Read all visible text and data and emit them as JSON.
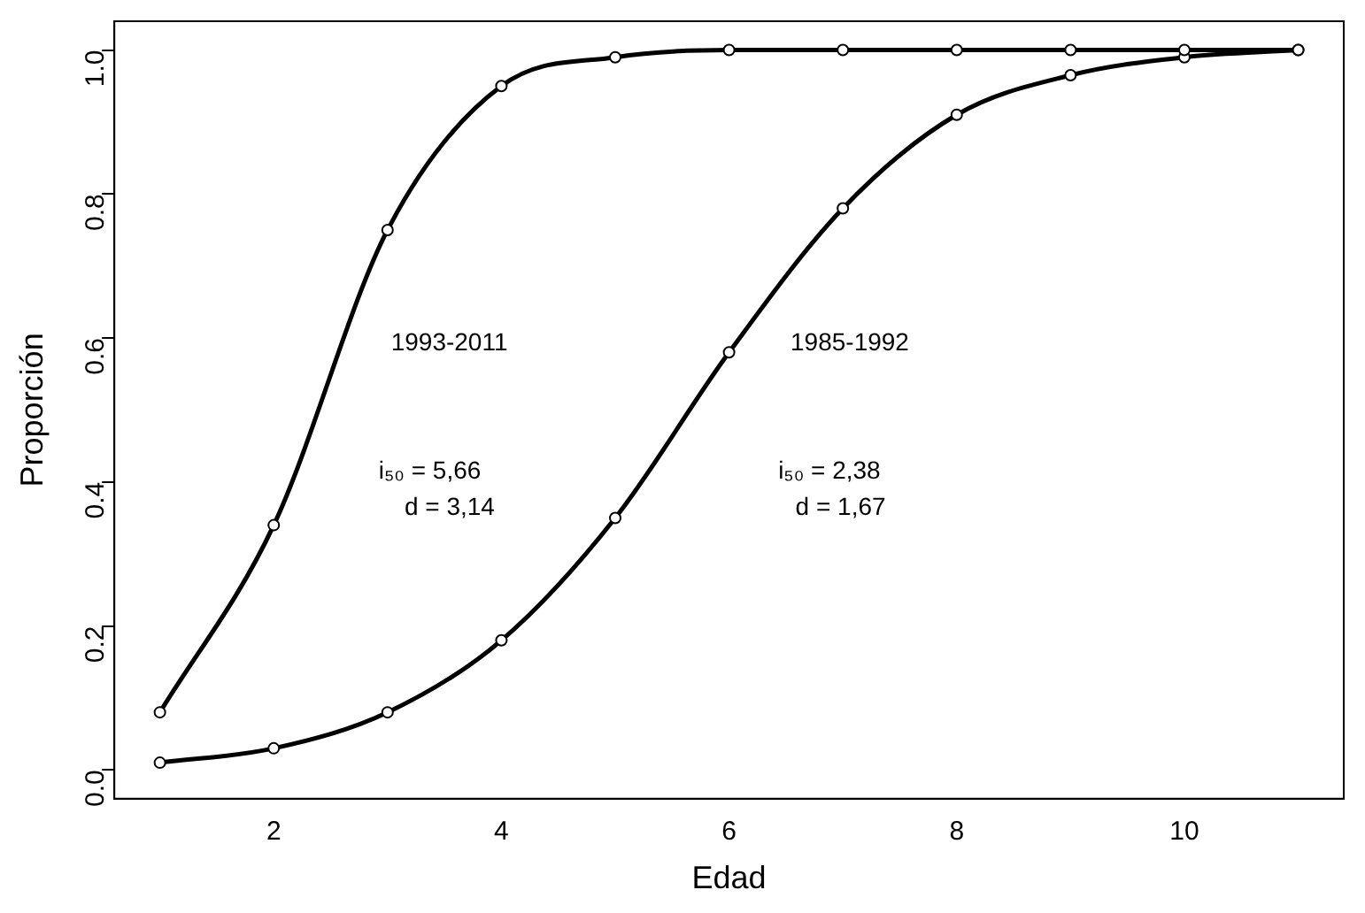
{
  "chart_data": {
    "type": "line",
    "xlabel": "Edad",
    "ylabel": "Proporción",
    "x": [
      1,
      2,
      3,
      4,
      5,
      6,
      7,
      8,
      9,
      10,
      11
    ],
    "series": [
      {
        "color": "#000000",
        "values": [
          0.08,
          0.34,
          0.75,
          0.95,
          0.99,
          1.0,
          1.0,
          1.0,
          1.0,
          1.0,
          1.0
        ]
      },
      {
        "color": "#000000",
        "values": [
          0.01,
          0.03,
          0.08,
          0.18,
          0.35,
          0.58,
          0.78,
          0.91,
          0.965,
          0.99,
          1.0
        ]
      }
    ],
    "xlim": [
      0.6,
      11.4
    ],
    "ylim": [
      -0.04,
      1.04
    ],
    "xticks": [
      2,
      4,
      6,
      8,
      10
    ],
    "yticks": [
      {
        "value": 0,
        "label": "0.0"
      },
      {
        "value": 0.2,
        "label": "0.2"
      },
      {
        "value": 0.4,
        "label": "0.4"
      },
      {
        "value": 0.6,
        "label": "0.6"
      },
      {
        "value": 0.8,
        "label": "0.8"
      },
      {
        "value": 1,
        "label": "1.0"
      }
    ],
    "annotations": [
      "1993-2011",
      "i₅₀ = 5,66",
      "d = 3,14",
      "1985-1992",
      "i₅₀ = 2,38",
      "d = 1,67"
    ],
    "grid": false,
    "legend": false,
    "marker": "circle",
    "line_style": "solid"
  }
}
